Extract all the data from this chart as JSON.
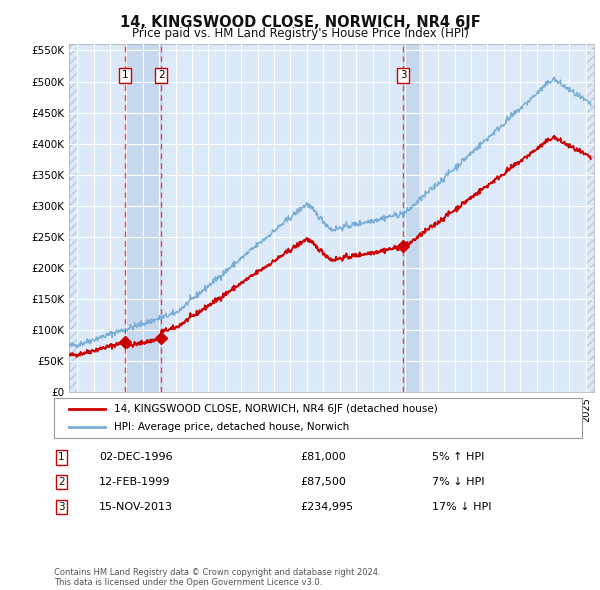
{
  "title": "14, KINGSWOOD CLOSE, NORWICH, NR4 6JF",
  "subtitle": "Price paid vs. HM Land Registry's House Price Index (HPI)",
  "legend_property": "14, KINGSWOOD CLOSE, NORWICH, NR4 6JF (detached house)",
  "legend_hpi": "HPI: Average price, detached house, Norwich",
  "footer": "Contains HM Land Registry data © Crown copyright and database right 2024.\nThis data is licensed under the Open Government Licence v3.0.",
  "sales": [
    {
      "date_num": 1996.92,
      "price": 81000,
      "label": "1"
    },
    {
      "date_num": 1999.12,
      "price": 87500,
      "label": "2"
    },
    {
      "date_num": 2013.88,
      "price": 234995,
      "label": "3"
    }
  ],
  "sale_annotations": [
    {
      "label": "1",
      "date": "02-DEC-1996",
      "price": "£81,000",
      "text": "5% ↑ HPI"
    },
    {
      "label": "2",
      "date": "12-FEB-1999",
      "price": "£87,500",
      "text": "7% ↓ HPI"
    },
    {
      "label": "3",
      "date": "15-NOV-2013",
      "price": "£234,995",
      "text": "17% ↓ HPI"
    }
  ],
  "vline_shade_pairs": [
    [
      1996.92,
      1999.12
    ],
    [
      2013.88,
      2014.75
    ]
  ],
  "ylim": [
    0,
    560000
  ],
  "yticks": [
    0,
    50000,
    100000,
    150000,
    200000,
    250000,
    300000,
    350000,
    400000,
    450000,
    500000,
    550000
  ],
  "xlim": [
    1993.5,
    2025.5
  ],
  "bg_color": "#dce9f8",
  "hatch_color": "#b8cce0",
  "grid_color": "#ffffff",
  "red_line_color": "#cc0000",
  "blue_line_color": "#7aaed6",
  "vline_color": "#ee4444",
  "shade_color": "#c5d8ee",
  "fig_bg": "#ffffff",
  "hatch_left_end": 1994.0,
  "hatch_right_start": 2025.0
}
